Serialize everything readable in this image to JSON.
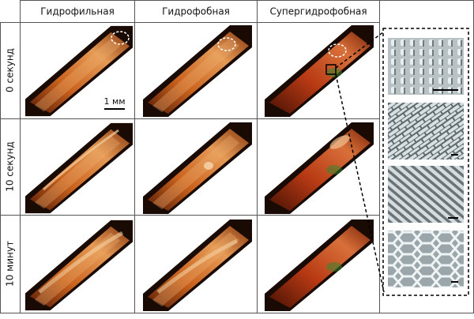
{
  "header": {
    "columns": [
      "Гидрофильная",
      "Гидрофобная",
      "Супергидрофобная"
    ]
  },
  "rows": [
    {
      "label": "0 секунд"
    },
    {
      "label": "10 секунд"
    },
    {
      "label": "10 минут"
    }
  ],
  "scale_bar": "1 мм"
}
